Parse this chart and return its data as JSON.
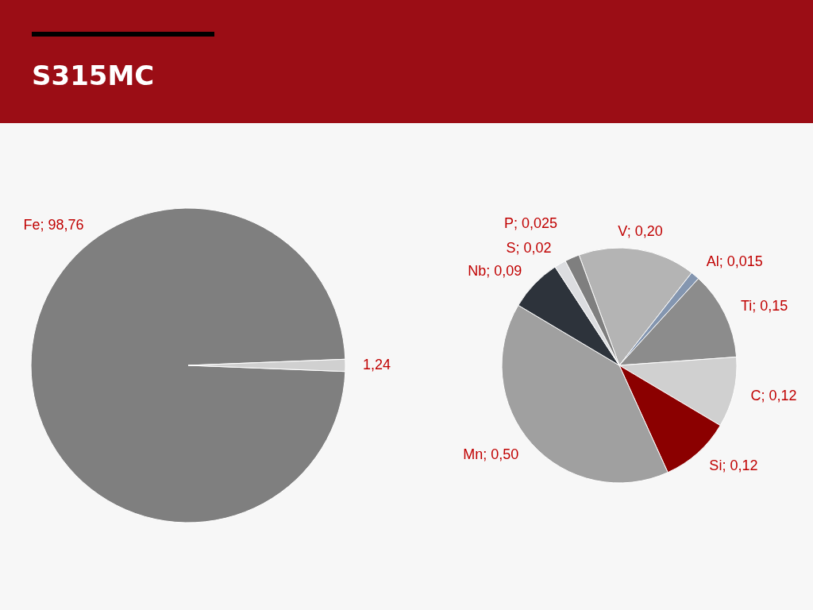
{
  "chart_data": [
    {
      "type": "pie",
      "title": "S315MC",
      "categories": [
        "Fe",
        null
      ],
      "values": [
        98.76,
        1.24
      ],
      "value_labels": [
        "98,76",
        "1,24"
      ],
      "colors": [
        "#7f7f7f",
        "#d0d0d0"
      ]
    },
    {
      "type": "pie",
      "categories": [
        "V",
        "Al",
        "Ti",
        "C",
        "Si",
        "Mn",
        "Nb",
        "S",
        "P"
      ],
      "values": [
        0.2,
        0.015,
        0.15,
        0.12,
        0.12,
        0.5,
        0.09,
        0.02,
        0.025
      ],
      "value_labels": [
        "0,20",
        "0,015",
        "0,15",
        "0,12",
        "0,12",
        "0,50",
        "0,09",
        "0,02",
        "0,025"
      ],
      "colors": [
        "#b4b4b4",
        "#8496b0",
        "#8c8c8c",
        "#d0d0d0",
        "#8b0000",
        "#a0a0a0",
        "#2d333b",
        "#dcdde0",
        "#7f7f7f"
      ]
    }
  ]
}
